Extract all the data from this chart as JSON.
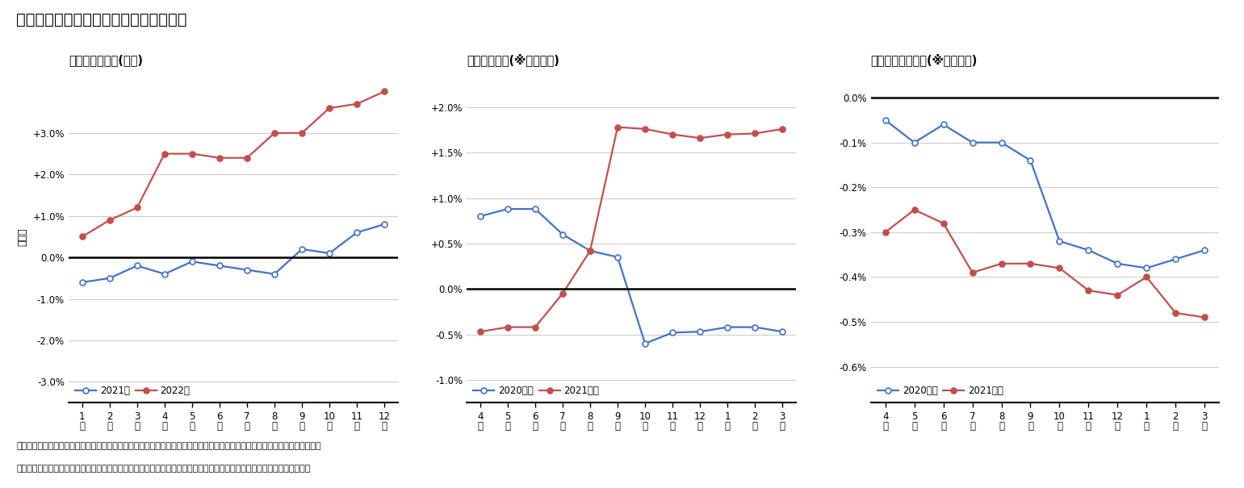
{
  "title": "図表５　年金額改定に関係する経済動向",
  "note1": "（注１）年金額の改定には共済年金の標準報酬や加入者数も影響するが、月次の状況を把握できないため共済以外を参照した。",
  "note2": "（資料）総務省統計局「消費者物価指数」、厚生労働省年金局「厚生年金保険・国民年金事業状況（事業月報）」（各月）",
  "chart1": {
    "title": "消費者物価指数(総合)",
    "ylabel": "前年比",
    "xtick_labels": [
      "1\n月",
      "2\n月",
      "3\n月",
      "4\n月",
      "5\n月",
      "6\n月",
      "7\n月",
      "8\n月",
      "9\n月",
      "10\n月",
      "11\n月",
      "12\n月"
    ],
    "xvals": [
      1,
      2,
      3,
      4,
      5,
      6,
      7,
      8,
      9,
      10,
      11,
      12
    ],
    "ylim": [
      -3.5,
      4.5
    ],
    "yticks": [
      -3.0,
      -2.0,
      -1.0,
      0.0,
      1.0,
      2.0,
      3.0
    ],
    "ytick_labels": [
      "-3.0%",
      "-2.0%",
      "-1.0%",
      "0.0%",
      "+1.0%",
      "+2.0%",
      "+3.0%"
    ],
    "series": [
      {
        "label": "2021年",
        "color": "#4472C4",
        "markerfacecolor": "white",
        "values": [
          -0.6,
          -0.5,
          -0.2,
          -0.4,
          -0.1,
          -0.2,
          -0.3,
          -0.4,
          0.2,
          0.1,
          0.6,
          0.8
        ]
      },
      {
        "label": "2022年",
        "color": "#C0504D",
        "markerfacecolor": "#C0504D",
        "values": [
          0.5,
          0.9,
          1.2,
          2.5,
          2.5,
          2.4,
          2.4,
          3.0,
          3.0,
          3.6,
          3.7,
          4.0
        ]
      }
    ]
  },
  "chart2": {
    "title": "標準報酬月額(※共済以外)",
    "xtick_labels": [
      "4\n月",
      "5\n月",
      "6\n月",
      "7\n月",
      "8\n月",
      "9\n月",
      "10\n月",
      "11\n月",
      "12\n月",
      "1\n月",
      "2\n月",
      "3\n月"
    ],
    "xvals": [
      1,
      2,
      3,
      4,
      5,
      6,
      7,
      8,
      9,
      10,
      11,
      12
    ],
    "ylim": [
      -1.25,
      2.4
    ],
    "yticks": [
      -1.0,
      -0.5,
      0.0,
      0.5,
      1.0,
      1.5,
      2.0
    ],
    "ytick_labels": [
      "-1.0%",
      "-0.5%",
      "0.0%",
      "+0.5%",
      "+1.0%",
      "+1.5%",
      "+2.0%"
    ],
    "series": [
      {
        "label": "2020年度",
        "color": "#4472C4",
        "markerfacecolor": "white",
        "values": [
          0.8,
          0.88,
          0.88,
          0.6,
          0.42,
          0.35,
          -0.6,
          -0.48,
          -0.47,
          -0.42,
          -0.42,
          -0.47
        ]
      },
      {
        "label": "2021年度",
        "color": "#C0504D",
        "markerfacecolor": "#C0504D",
        "values": [
          -0.47,
          -0.42,
          -0.42,
          -0.05,
          0.42,
          1.78,
          1.76,
          1.7,
          1.66,
          1.7,
          1.71,
          1.76
        ]
      }
    ]
  },
  "chart3": {
    "title": "公的年金加入者数(※共済以外)",
    "xtick_labels": [
      "4\n月",
      "5\n月",
      "6\n月",
      "7\n月",
      "8\n月",
      "9\n月",
      "10\n月",
      "11\n月",
      "12\n月",
      "1\n月",
      "2\n月",
      "3\n月"
    ],
    "xvals": [
      1,
      2,
      3,
      4,
      5,
      6,
      7,
      8,
      9,
      10,
      11,
      12
    ],
    "ylim": [
      -0.68,
      0.06
    ],
    "yticks": [
      0.0,
      -0.1,
      -0.2,
      -0.3,
      -0.4,
      -0.5,
      -0.6
    ],
    "ytick_labels": [
      "0.0%",
      "-0.1%",
      "-0.2%",
      "-0.3%",
      "-0.4%",
      "-0.5%",
      "-0.6%"
    ],
    "series": [
      {
        "label": "2020年度",
        "color": "#4472C4",
        "markerfacecolor": "white",
        "values": [
          -0.05,
          -0.1,
          -0.06,
          -0.1,
          -0.1,
          -0.14,
          -0.32,
          -0.34,
          -0.37,
          -0.38,
          -0.36,
          -0.34
        ]
      },
      {
        "label": "2021年度",
        "color": "#C0504D",
        "markerfacecolor": "#C0504D",
        "values": [
          -0.3,
          -0.25,
          -0.28,
          -0.39,
          -0.37,
          -0.37,
          -0.38,
          -0.43,
          -0.44,
          -0.4,
          -0.48,
          -0.49
        ]
      }
    ]
  },
  "blue_color": "#4472C4",
  "red_color": "#C0504D",
  "bg_color": "#FFFFFF",
  "grid_color": "#CCCCCC"
}
